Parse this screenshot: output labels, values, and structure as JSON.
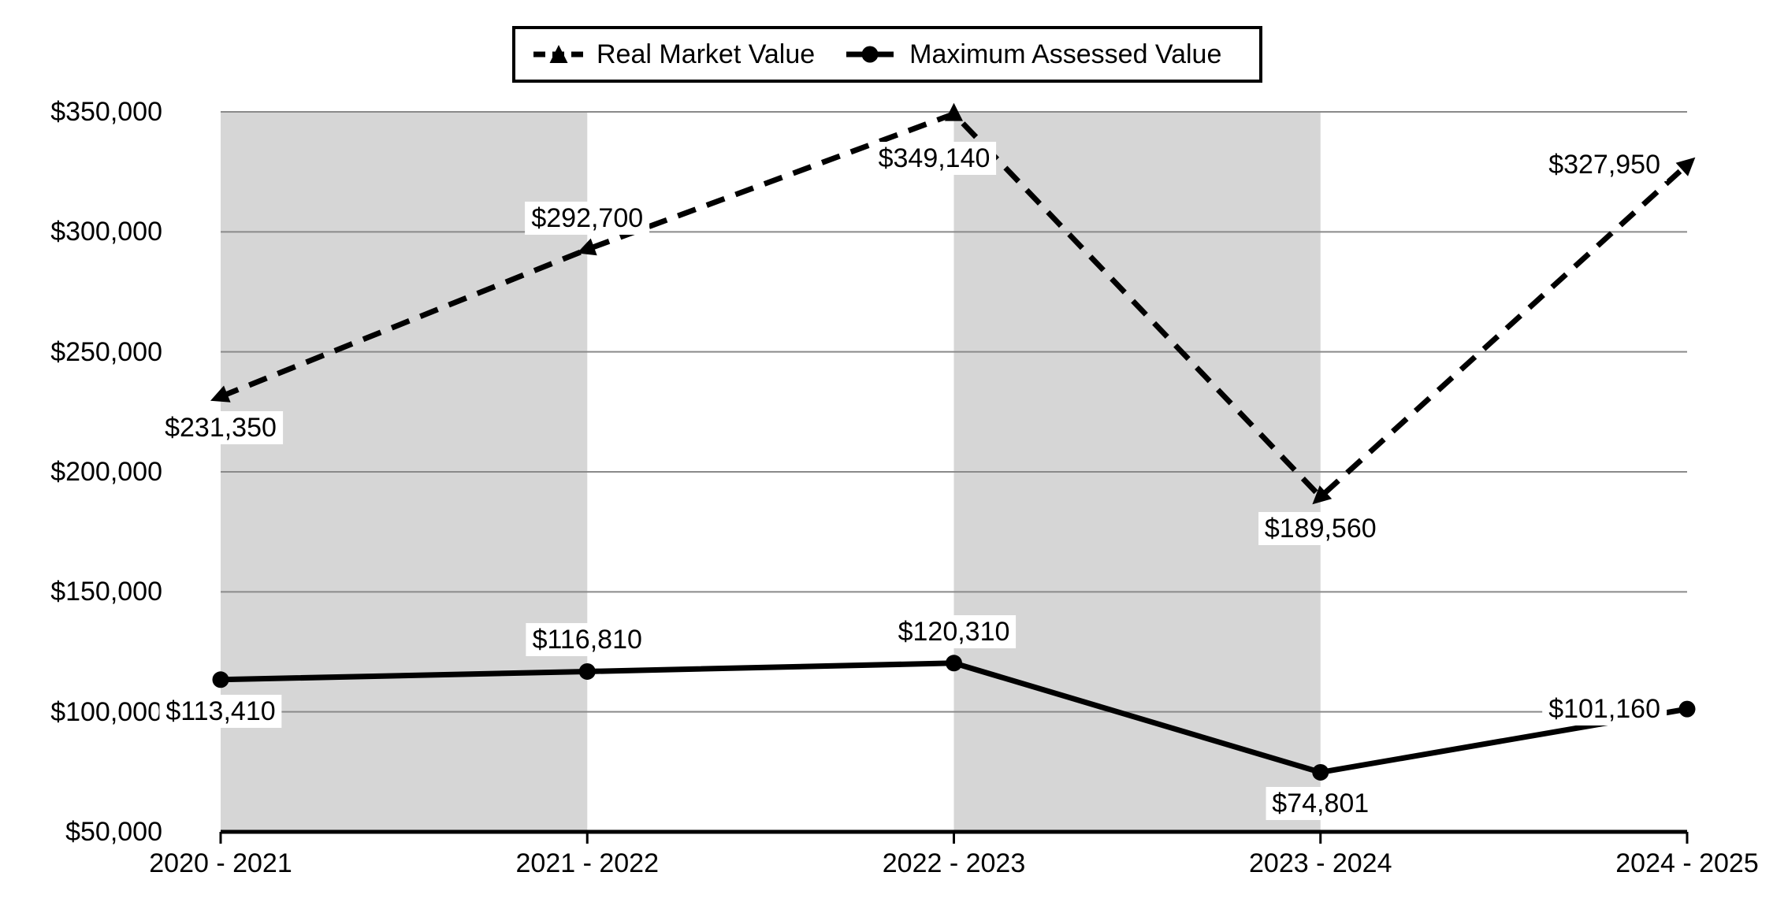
{
  "chart_data": {
    "type": "line",
    "title": "",
    "categories": [
      "2020 - 2021",
      "2021 - 2022",
      "2022 - 2023",
      "2023 - 2024",
      "2024 - 2025"
    ],
    "series": [
      {
        "name": "Real Market Value",
        "values": [
          231350,
          292700,
          349140,
          189560,
          327950
        ],
        "labels": [
          "$231,350",
          "$292,700",
          "$349,140",
          "$189,560",
          "$327,950"
        ],
        "line_style": "dashed",
        "marker": "triangle-arrow",
        "label_positions": [
          "below",
          "above",
          "below-left",
          "below",
          "left"
        ]
      },
      {
        "name": "Maximum Assessed Value",
        "values": [
          113410,
          116810,
          120310,
          74801,
          101160
        ],
        "labels": [
          "$113,410",
          "$116,810",
          "$120,310",
          "$74,801",
          "$101,160"
        ],
        "line_style": "solid",
        "marker": "circle",
        "label_positions": [
          "below",
          "above",
          "above",
          "below",
          "left"
        ]
      }
    ],
    "y_axis": {
      "min": 50000,
      "max": 350000,
      "tick_step": 50000,
      "tick_labels": [
        "$50,000",
        "$100,000",
        "$150,000",
        "$200,000",
        "$250,000",
        "$300,000",
        "$350,000"
      ]
    },
    "grid": "horizontal",
    "legend_position": "top",
    "shaded_column_bands": [
      [
        0,
        1
      ],
      [
        2,
        3
      ]
    ],
    "colors": {
      "series": "#000000",
      "band": "#d6d6d6",
      "gridline": "#8a8a8a",
      "axis": "#000000",
      "label_bg": "#ffffff",
      "text": "#000000"
    }
  }
}
